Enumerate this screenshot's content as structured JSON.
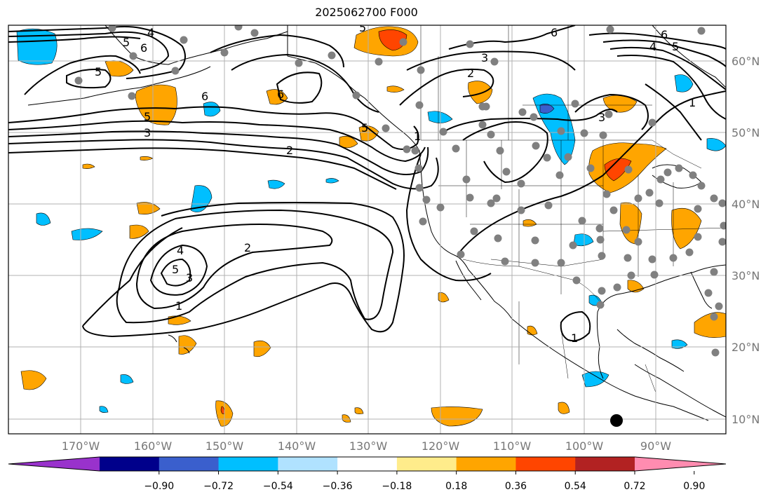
{
  "title": "2025062700 F000",
  "lon_labels": [
    "170°W",
    "160°W",
    "150°W",
    "140°W",
    "130°W",
    "120°W",
    "110°W",
    "100°W",
    "90°W"
  ],
  "lat_labels": [
    "60°N",
    "50°N",
    "40°N",
    "30°N",
    "20°N",
    "10°N"
  ],
  "colorbar": {
    "ticks": [
      "−0.90",
      "−0.72",
      "−0.54",
      "−0.36",
      "−0.18",
      "0.18",
      "0.36",
      "0.54",
      "0.72",
      "0.90"
    ],
    "colors": [
      "#9932cc",
      "#00008b",
      "#3a5fcd",
      "#00bfff",
      "#b0e2ff",
      "#ffffff",
      "#ffec8b",
      "#ffa500",
      "#ff4500",
      "#b22222",
      "#ff8cb0"
    ]
  },
  "contour_labels": [
    "1",
    "2",
    "3",
    "4",
    "5",
    "6"
  ],
  "colors": {
    "frame": "#000000",
    "grid": "#b0b0b0",
    "tick": "#777777",
    "station": "#808080"
  }
}
